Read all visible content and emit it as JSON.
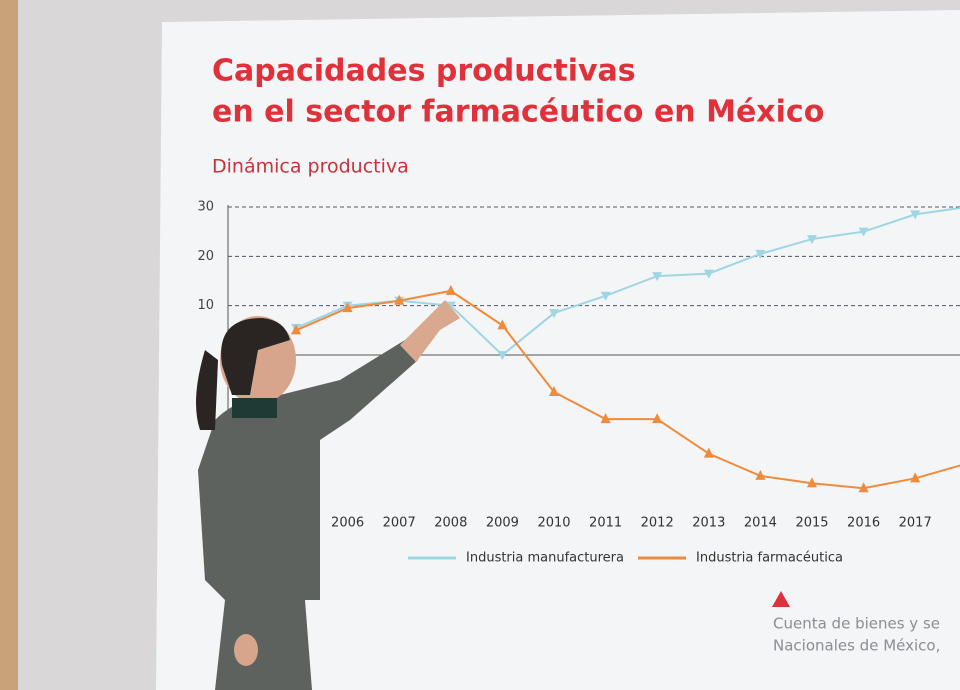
{
  "chart_data": {
    "type": "line",
    "title": [
      "Capacidades productivas",
      "en el sector farmacéutico en México"
    ],
    "subtitle": "Dinámica productiva",
    "categories": [
      null,
      "2006",
      "2007",
      "2008",
      "2009",
      "2010",
      "2011",
      "2012",
      "2013",
      "2014",
      "2015",
      "2016",
      "2017",
      null
    ],
    "series": [
      {
        "name": "Industria manufacturera",
        "color": "#9fd6e4",
        "values": [
          5.5,
          10,
          11,
          10,
          0,
          8.5,
          12,
          16,
          16.5,
          20.5,
          23.5,
          25,
          28.5,
          30
        ]
      },
      {
        "name": "Industria farmacéutica",
        "color": "#f08a3c",
        "values": [
          5,
          9.5,
          11,
          13,
          6,
          -7.5,
          -13,
          -13,
          -20,
          -24.5,
          -26,
          -27,
          -25,
          -22
        ]
      }
    ],
    "ylim": [
      -30,
      30
    ],
    "yticks": [
      10,
      20,
      30
    ],
    "grid": true,
    "source": [
      "Cuenta de bienes y se",
      "Nacionales de México,"
    ]
  }
}
